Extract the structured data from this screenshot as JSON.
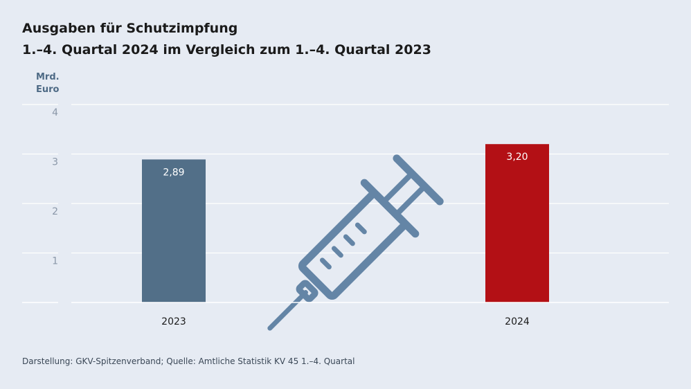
{
  "title_line1": "Ausgaben für Schutzimpfung",
  "title_line2": "1.–4. Quartal 2024 im Vergleich zum 1.–4. Quartal 2023",
  "unit_line1": "Mrd.",
  "unit_line2": "Euro",
  "source": "Darstellung: GKV-Spitzenverband; Quelle: Amtliche Statistik KV 45 1.–4. Quartal",
  "chart_data": {
    "type": "bar",
    "categories": [
      "2023",
      "2024"
    ],
    "values": [
      2.89,
      3.2
    ],
    "value_labels": [
      "2,89",
      "3,20"
    ],
    "bar_colors": [
      "#526f88",
      "#b31015"
    ],
    "yticks": [
      1,
      2,
      3,
      4
    ],
    "ylim": [
      0,
      4
    ],
    "ylabel": "Mrd. Euro",
    "grid": true,
    "legend": "none",
    "decoration_icon": "syringe-icon",
    "icon_color": "#6485a6"
  }
}
